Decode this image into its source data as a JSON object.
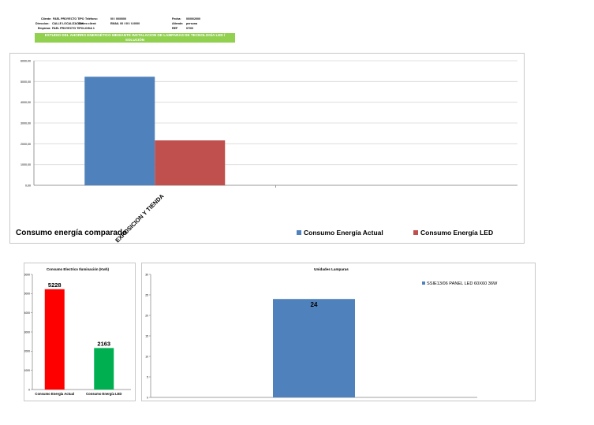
{
  "header": {
    "rows": [
      [
        {
          "label": "Cliente:",
          "value": "FAEL PROYECTO TIPO"
        },
        {
          "label": "Teléfono:",
          "value": "00 / 00/0000"
        },
        {
          "label": "Fecha:",
          "value": "00/00/2000"
        }
      ],
      [
        {
          "label": "Direccion:",
          "value": "CALLE LOCALIZACION"
        },
        {
          "label": "Correo client:",
          "value": "EMAIL 00 / 00 / 0.0000"
        },
        {
          "label": "Atiende:",
          "value": "persona"
        }
      ],
      [
        {
          "label": "Empresa:",
          "value": "FAEL PROYECTO TIPOLOGIA 1"
        },
        {
          "label": "",
          "value": ""
        },
        {
          "label": "REF",
          "value": "07/00"
        }
      ]
    ],
    "banner": "ESTUDIO DEL AHORRO ENERGÉTICO MEDIANTE INSTALACION DE LAMPARAS DE TECNOLOGÍA LED / SOLUCIÓN"
  },
  "chart_data": [
    {
      "type": "bar",
      "title": "Consumo energía comparado",
      "categories": [
        "EXPOSICION Y TIENDA"
      ],
      "series": [
        {
          "name": "Consumo Energía Actual",
          "color": "#4f81bd",
          "values": [
            5228
          ]
        },
        {
          "name": "Consumo Energía LED",
          "color": "#c0504d",
          "values": [
            2163
          ]
        }
      ],
      "ylim": [
        0,
        6000
      ],
      "yticks": [
        "0,00",
        "1000,00",
        "2000,00",
        "3000,00",
        "4000,00",
        "5000,00",
        "6000,00"
      ],
      "grid": true,
      "legend": "bottom-right"
    },
    {
      "type": "bar",
      "title": "Consumo Electrico Iluminación (Kwh)",
      "categories": [
        "Consumo Energía Actual",
        "Consumo Energía LED"
      ],
      "values": [
        5228,
        2163
      ],
      "data_labels": [
        "5228",
        "2163"
      ],
      "colors": [
        "#ff0000",
        "#00b050"
      ],
      "ylim": [
        0,
        6000
      ],
      "yticks": [
        "0",
        "1000",
        "2000",
        "3000",
        "4000",
        "5000",
        "6000"
      ],
      "grid": false
    },
    {
      "type": "bar",
      "title": "Unidades Lamparas",
      "series": [
        {
          "name": "SSIE13/06 PANEL LED 60X60 36W",
          "color": "#4f81bd",
          "values": [
            24
          ]
        }
      ],
      "data_labels": [
        "24"
      ],
      "ylim": [
        0,
        30
      ],
      "yticks": [
        "0",
        "5",
        "10",
        "15",
        "20",
        "25",
        "30"
      ],
      "grid": false,
      "legend": "top-right"
    }
  ]
}
